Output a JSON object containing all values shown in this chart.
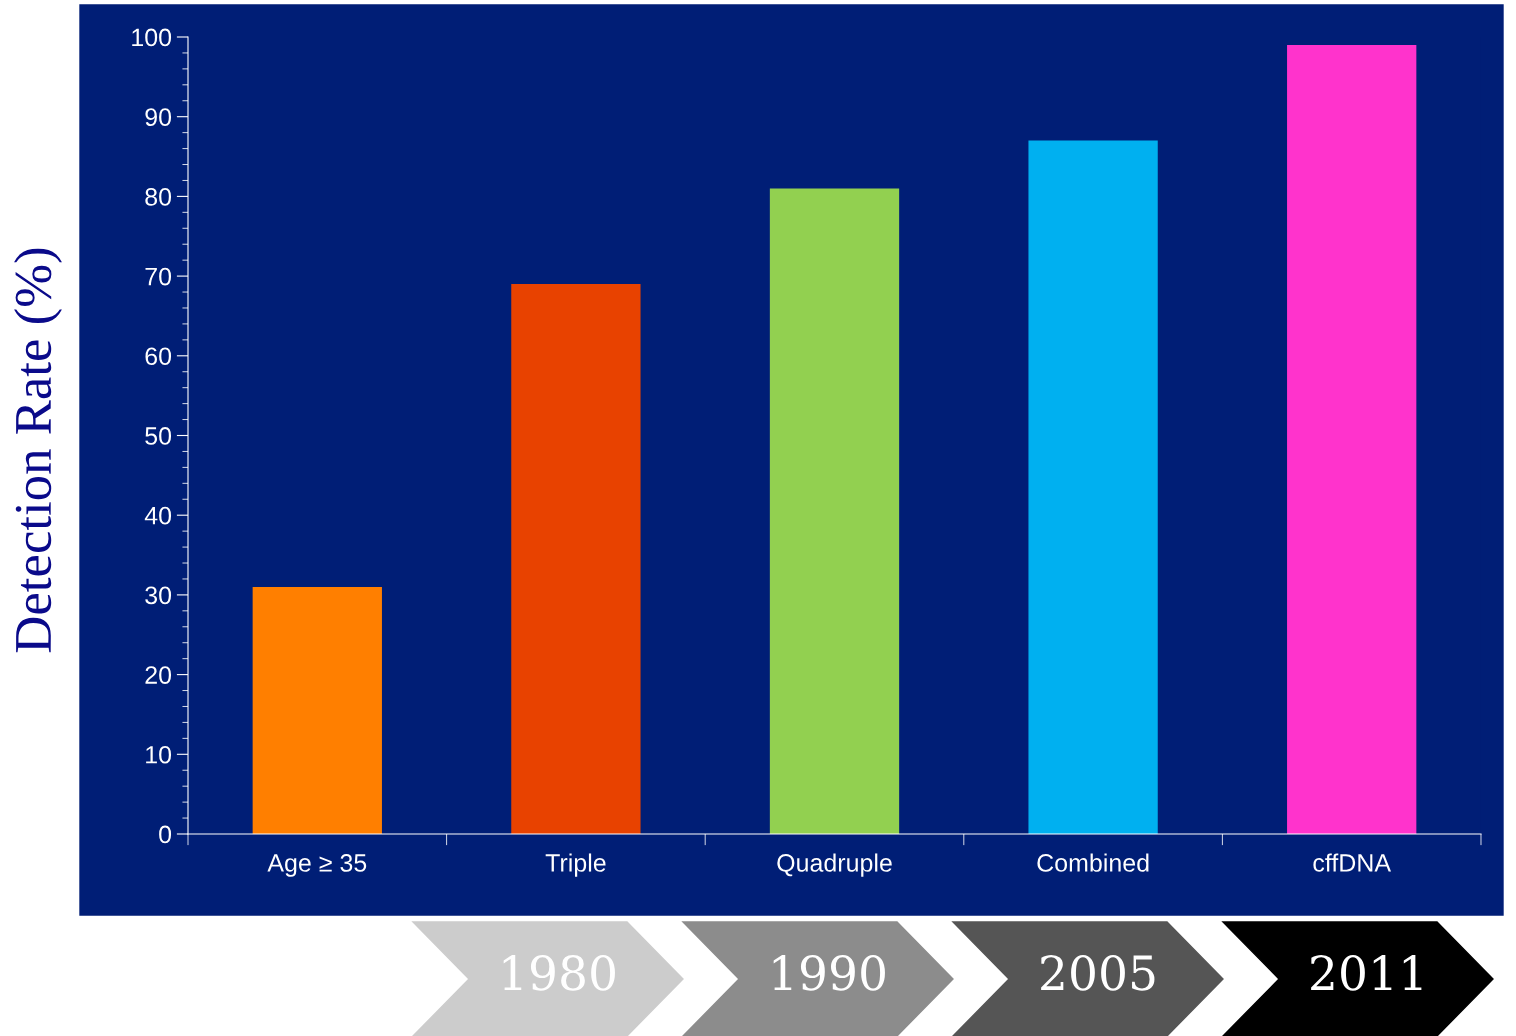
{
  "chart_data": {
    "type": "bar",
    "ylabel": "Detection Rate (%)",
    "categories": [
      "Age ≥ 35",
      "Triple",
      "Quadruple",
      "Combined",
      "cffDNA"
    ],
    "values": [
      31,
      69,
      81,
      87,
      99
    ],
    "colors": [
      "#ff7f00",
      "#e84200",
      "#92d050",
      "#00b0f0",
      "#ff33cc"
    ],
    "ylim": [
      0,
      100
    ],
    "yticks": [
      0,
      10,
      20,
      30,
      40,
      50,
      60,
      70,
      80,
      90,
      100
    ],
    "annotations": [
      "1980",
      "1990",
      "2005",
      "2011"
    ]
  }
}
